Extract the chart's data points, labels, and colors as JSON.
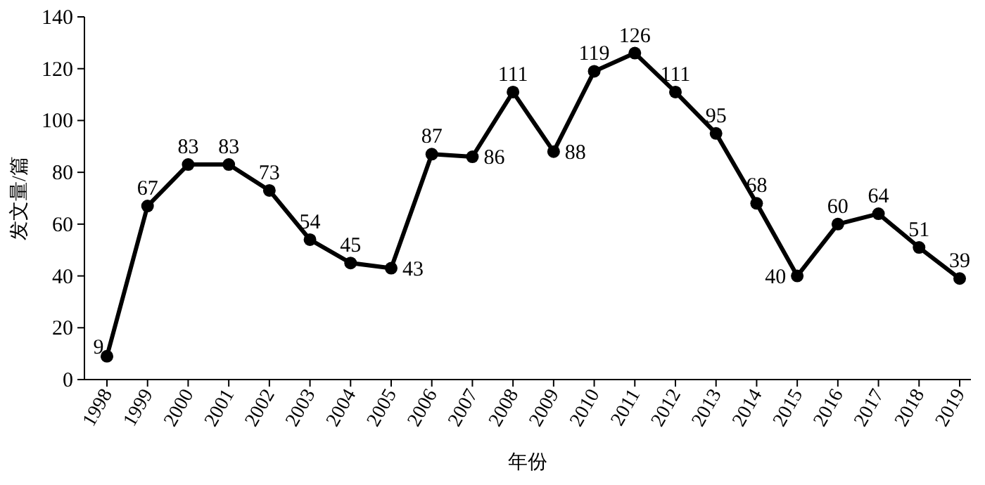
{
  "chart_data": {
    "type": "line",
    "xlabel": "年份",
    "ylabel": "发文量/篇",
    "categories": [
      "1998",
      "1999",
      "2000",
      "2001",
      "2002",
      "2003",
      "2004",
      "2005",
      "2006",
      "2007",
      "2008",
      "2009",
      "2010",
      "2011",
      "2012",
      "2013",
      "2014",
      "2015",
      "2016",
      "2017",
      "2018",
      "2019"
    ],
    "values": [
      9,
      67,
      83,
      83,
      73,
      54,
      45,
      43,
      87,
      86,
      111,
      88,
      119,
      126,
      111,
      95,
      68,
      40,
      60,
      64,
      51,
      39
    ],
    "color": "#000000",
    "marker": "circle",
    "line_style": "solid",
    "data_labels": true,
    "ylim": [
      0,
      140
    ],
    "yticks": [
      0,
      20,
      40,
      60,
      80,
      100,
      120,
      140
    ]
  }
}
